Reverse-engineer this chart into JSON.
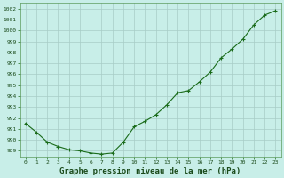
{
  "x": [
    0,
    1,
    2,
    3,
    4,
    5,
    6,
    7,
    8,
    9,
    10,
    11,
    12,
    13,
    14,
    15,
    16,
    17,
    18,
    19,
    20,
    21,
    22,
    23
  ],
  "y": [
    991.5,
    990.7,
    989.8,
    989.4,
    989.1,
    989.0,
    988.8,
    988.7,
    988.8,
    989.8,
    991.2,
    991.7,
    992.3,
    993.2,
    994.3,
    994.5,
    995.3,
    996.2,
    997.5,
    998.3,
    999.2,
    1000.5,
    1001.4,
    1001.8
  ],
  "line_color": "#1a6b1a",
  "marker": "+",
  "marker_color": "#1a6b1a",
  "bg_color": "#c8eee8",
  "grid_color": "#a8ccc6",
  "xlabel": "Graphe pression niveau de la mer (hPa)",
  "ylabel": "",
  "ylim": [
    988.5,
    1002.5
  ],
  "xlim": [
    -0.5,
    23.5
  ],
  "yticks": [
    989,
    990,
    991,
    992,
    993,
    994,
    995,
    996,
    997,
    998,
    999,
    1000,
    1001,
    1002
  ],
  "xticks": [
    0,
    1,
    2,
    3,
    4,
    5,
    6,
    7,
    8,
    9,
    10,
    11,
    12,
    13,
    14,
    15,
    16,
    17,
    18,
    19,
    20,
    21,
    22,
    23
  ],
  "tick_fontsize": 4.5,
  "xlabel_fontsize": 6.5,
  "line_width": 0.8,
  "marker_size": 3.5,
  "marker_edge_width": 0.8
}
